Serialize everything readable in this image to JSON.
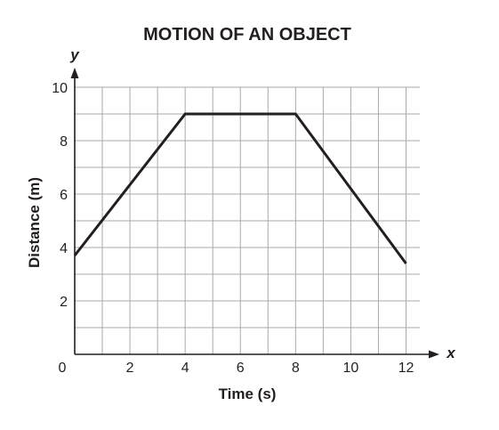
{
  "chart_data": {
    "type": "line",
    "title": "MOTION OF AN OBJECT",
    "xlabel": "Time (s)",
    "ylabel": "Distance (m)",
    "x_axis_letter": "x",
    "y_axis_letter": "y",
    "xlim": [
      0,
      12.5
    ],
    "ylim": [
      0,
      10
    ],
    "grid": true,
    "grid_step": 1,
    "x_ticks": [
      {
        "value": 0,
        "label": "0"
      },
      {
        "value": 2,
        "label": "2"
      },
      {
        "value": 4,
        "label": "4"
      },
      {
        "value": 6,
        "label": "6"
      },
      {
        "value": 8,
        "label": "8"
      },
      {
        "value": 10,
        "label": "10"
      },
      {
        "value": 12,
        "label": "12"
      }
    ],
    "y_ticks": [
      {
        "value": 2,
        "label": "2"
      },
      {
        "value": 4,
        "label": "4"
      },
      {
        "value": 6,
        "label": "6"
      },
      {
        "value": 8,
        "label": "8"
      },
      {
        "value": 10,
        "label": "10"
      }
    ],
    "series": [
      {
        "x": [
          0,
          4,
          8,
          12
        ],
        "y": [
          3.7,
          9,
          9,
          3.4
        ]
      }
    ]
  }
}
